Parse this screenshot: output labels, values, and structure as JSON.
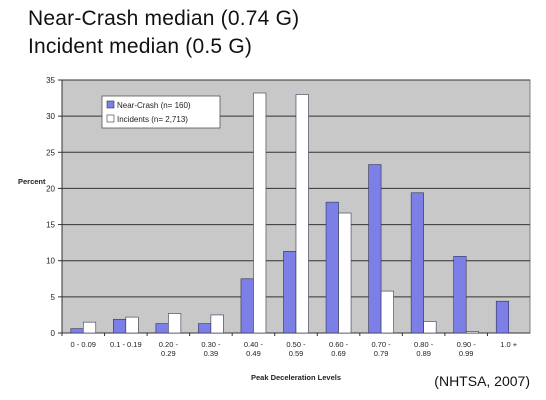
{
  "headlines": [
    "Near-Crash median (0.74 G)",
    "Incident median (0.5 G)"
  ],
  "source": "(NHTSA, 2007)",
  "colors": {
    "near_crash": "#7b7fe6",
    "incidents": "#ffffff",
    "plot_bg": "#c8c8c8",
    "bar_stroke": "#333355"
  },
  "chart_data": {
    "type": "bar",
    "categories": [
      [
        "0 - 0.09"
      ],
      [
        "0.1 - 0.19"
      ],
      [
        "0.20 -",
        "0.29"
      ],
      [
        "0.30 -",
        "0.39"
      ],
      [
        "0.40 -",
        "0.49"
      ],
      [
        "0.50 -",
        "0.59"
      ],
      [
        "0.60 -",
        "0.69"
      ],
      [
        "0.70 -",
        "0.79"
      ],
      [
        "0.80 -",
        "0.89"
      ],
      [
        "0.90 -",
        "0.99"
      ],
      [
        "1.0 +"
      ]
    ],
    "series": [
      {
        "name": "Near-Crash (n= 160)",
        "values": [
          0.6,
          1.9,
          1.3,
          1.3,
          7.5,
          11.3,
          18.1,
          23.3,
          19.4,
          10.6,
          4.4
        ]
      },
      {
        "name": "Incidents (n= 2,713)",
        "values": [
          1.5,
          2.2,
          2.7,
          2.5,
          33.2,
          33.0,
          16.6,
          5.8,
          1.6,
          0.2,
          0.0
        ]
      }
    ],
    "xlabel": "Peak Deceleration Levels",
    "ylabel": "Percent",
    "ylim": [
      0,
      35
    ],
    "yticks": [
      0,
      5,
      10,
      15,
      20,
      25,
      30,
      35
    ],
    "grid": true,
    "legend": "top-left"
  }
}
